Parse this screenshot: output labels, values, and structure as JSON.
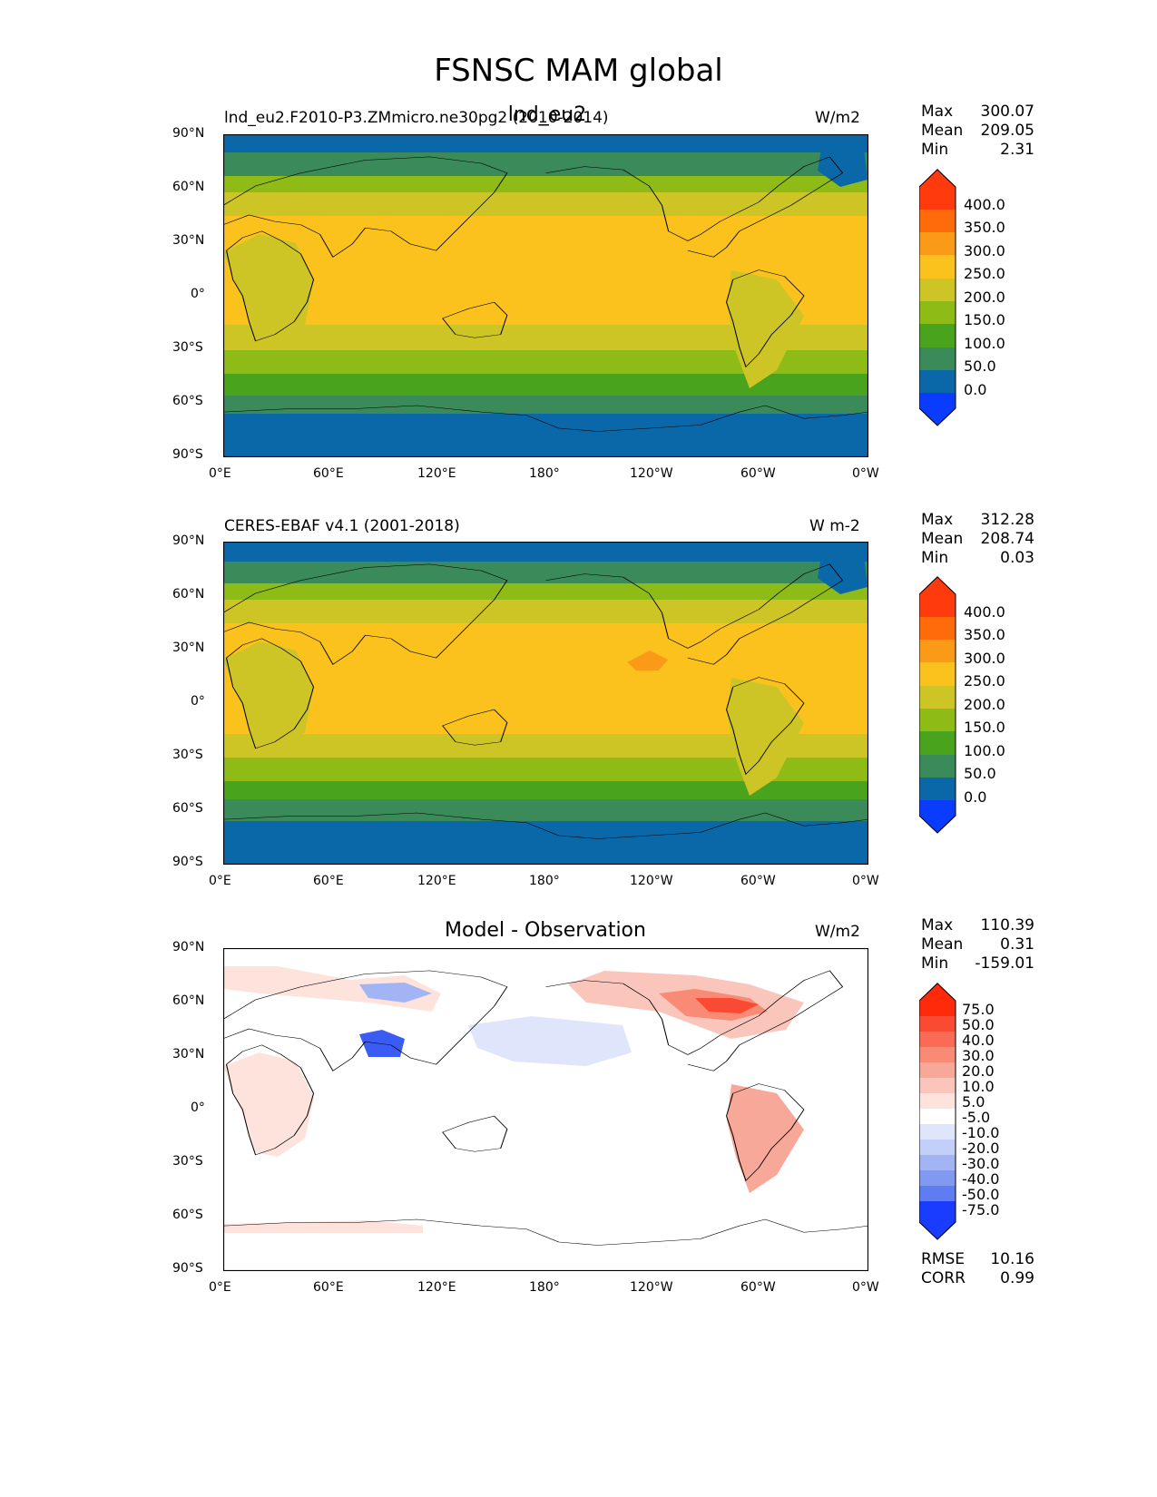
{
  "figure": {
    "title": "FSNSC MAM global"
  },
  "axes": {
    "lat_ticks": [
      "90°N",
      "60°N",
      "30°N",
      "0°",
      "30°S",
      "60°S",
      "90°S"
    ],
    "lon_ticks": [
      "0°E",
      "60°E",
      "120°E",
      "180°",
      "120°W",
      "60°W",
      "0°W"
    ]
  },
  "panels": [
    {
      "left_title": "lnd_eu2.F2010-P3.ZMmicro.ne30pg2 (2010-2014)",
      "center_title": "lnd_eu2",
      "units": "W/m2",
      "stats": [
        {
          "k": "Max",
          "v": "300.07"
        },
        {
          "k": "Mean",
          "v": "209.05"
        },
        {
          "k": "Min",
          "v": "2.31"
        }
      ],
      "colorbar": {
        "labels": [
          "400.0",
          "350.0",
          "300.0",
          "250.0",
          "200.0",
          "150.0",
          "100.0",
          "50.0",
          "0.0"
        ],
        "colors": [
          "#ff3a0d",
          "#ff6a0a",
          "#fb9a16",
          "#fbc21e",
          "#cdc526",
          "#8ebb16",
          "#4aa31c",
          "#3a8a5a",
          "#0a68a8",
          "#0a3cff"
        ]
      }
    },
    {
      "left_title": "CERES-EBAF v4.1 (2001-2018)",
      "center_title": "",
      "units": "W m-2",
      "stats": [
        {
          "k": "Max",
          "v": "312.28"
        },
        {
          "k": "Mean",
          "v": "208.74"
        },
        {
          "k": "Min",
          "v": "0.03"
        }
      ],
      "colorbar": {
        "labels": [
          "400.0",
          "350.0",
          "300.0",
          "250.0",
          "200.0",
          "150.0",
          "100.0",
          "50.0",
          "0.0"
        ],
        "colors": [
          "#ff3a0d",
          "#ff6a0a",
          "#fb9a16",
          "#fbc21e",
          "#cdc526",
          "#8ebb16",
          "#4aa31c",
          "#3a8a5a",
          "#0a68a8",
          "#0a3cff"
        ]
      }
    },
    {
      "left_title": "",
      "center_title": "Model - Observation",
      "units": "W/m2",
      "stats": [
        {
          "k": "Max",
          "v": "110.39"
        },
        {
          "k": "Mean",
          "v": "0.31"
        },
        {
          "k": "Min",
          "v": "-159.01"
        }
      ],
      "extra_stats": [
        {
          "k": "RMSE",
          "v": "10.16"
        },
        {
          "k": "CORR",
          "v": "0.99"
        }
      ],
      "colorbar": {
        "labels": [
          "75.0",
          "50.0",
          "40.0",
          "30.0",
          "20.0",
          "10.0",
          "5.0",
          "-5.0",
          "-10.0",
          "-20.0",
          "-30.0",
          "-40.0",
          "-50.0",
          "-75.0"
        ],
        "colors": [
          "#ff2a0a",
          "#fb4a33",
          "#fa6a55",
          "#f98a76",
          "#f8a898",
          "#fac6bb",
          "#fde3dc",
          "#ffffff",
          "#dfe6fb",
          "#c2cff8",
          "#a2b4f4",
          "#8299f0",
          "#5f7df2",
          "#3a5cf5",
          "#1a3cff"
        ]
      }
    }
  ]
}
